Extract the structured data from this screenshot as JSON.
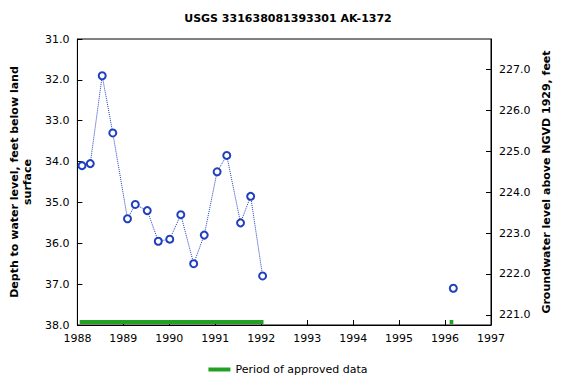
{
  "chart_data": {
    "type": "line",
    "title": "USGS 331638081393301 AK-1372",
    "y_label": "Depth to water level, feet below land\nsurface",
    "y2_label": "Groundwater level above NGVD 1929, feet",
    "x": [
      1988.1,
      1988.28,
      1988.54,
      1988.77,
      1989.09,
      1989.26,
      1989.52,
      1989.76,
      1990.01,
      1990.25,
      1990.53,
      1990.76,
      1991.04,
      1991.25,
      1991.55,
      1991.77,
      1992.03,
      1994.0,
      1996.18
    ],
    "series": [
      {
        "name": "Depth to water level",
        "color": "#1f3fbf",
        "marker": "circle",
        "line_style": "dotted",
        "values": [
          34.1,
          34.05,
          31.9,
          33.3,
          35.4,
          35.05,
          35.2,
          35.95,
          35.9,
          35.3,
          36.5,
          35.8,
          34.25,
          33.85,
          35.5,
          34.85,
          36.8,
          null,
          37.1
        ]
      }
    ],
    "approved_periods": {
      "name": "Period of approved data",
      "color": "#22a022",
      "ranges": [
        [
          1988.05,
          1992.05
        ],
        [
          1996.1,
          1996.18
        ]
      ]
    },
    "xlim": [
      1988,
      1997
    ],
    "xticks": [
      1988,
      1989,
      1990,
      1991,
      1992,
      1993,
      1994,
      1995,
      1996,
      1997
    ],
    "ylim": [
      31,
      38
    ],
    "yticks": [
      {
        "value": 31,
        "label": "31.0"
      },
      {
        "value": 32,
        "label": "32.0"
      },
      {
        "value": 33,
        "label": "33.0"
      },
      {
        "value": 34,
        "label": "34.0"
      },
      {
        "value": 35,
        "label": "35.0"
      },
      {
        "value": 36,
        "label": "36.0"
      },
      {
        "value": 37,
        "label": "37.0"
      },
      {
        "value": 38,
        "label": "38.0"
      }
    ],
    "y2lim": [
      220.75,
      227.75
    ],
    "y2ticks": [
      {
        "value": 221,
        "label": "221.0"
      },
      {
        "value": 222,
        "label": "222.0"
      },
      {
        "value": 223,
        "label": "223.0"
      },
      {
        "value": 224,
        "label": "224.0"
      },
      {
        "value": 225,
        "label": "225.0"
      },
      {
        "value": 226,
        "label": "226.0"
      },
      {
        "value": 227,
        "label": "227.0"
      }
    ],
    "grid": false,
    "legend": "bottom"
  }
}
